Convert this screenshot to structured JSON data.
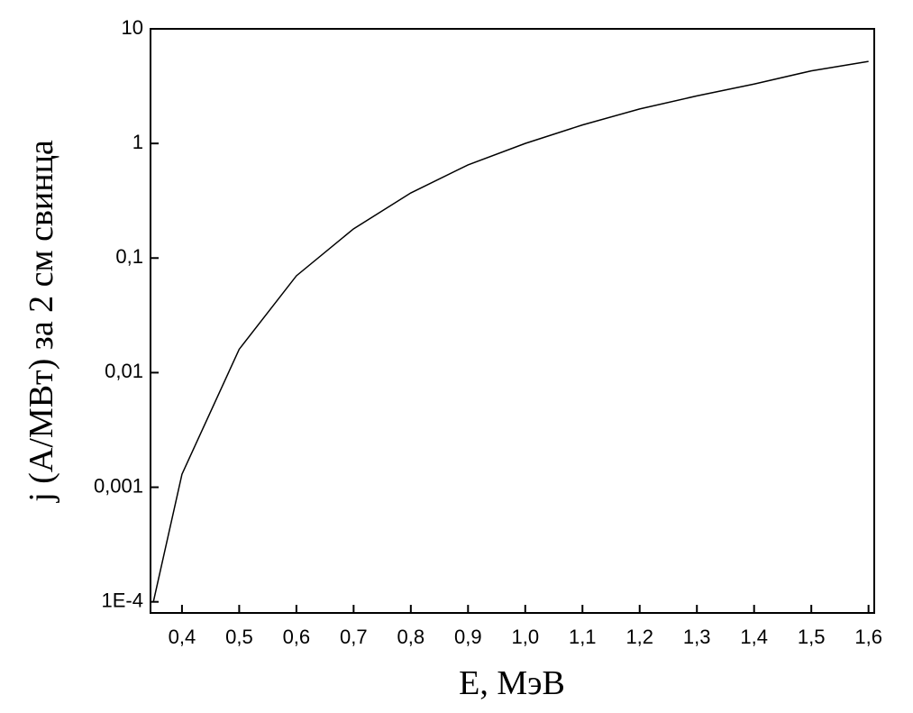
{
  "chart_data": {
    "type": "line",
    "xlabel": "E, МэВ",
    "ylabel": "j (A/МВт) за 2 см свинца",
    "x": [
      0.35,
      0.4,
      0.5,
      0.6,
      0.7,
      0.8,
      0.9,
      1.0,
      1.1,
      1.2,
      1.3,
      1.4,
      1.5,
      1.6
    ],
    "series": [
      {
        "color": "#000000",
        "values": [
          0.0001,
          0.0013,
          0.016,
          0.07,
          0.18,
          0.37,
          0.65,
          1.0,
          1.45,
          2.0,
          2.6,
          3.3,
          4.3,
          5.2
        ]
      }
    ],
    "xlim": [
      0.345,
      1.61
    ],
    "ylim": [
      8e-05,
      10
    ],
    "ylog": true,
    "xticks": [
      {
        "value": 0.4,
        "label": "0,4"
      },
      {
        "value": 0.5,
        "label": "0,5"
      },
      {
        "value": 0.6,
        "label": "0,6"
      },
      {
        "value": 0.7,
        "label": "0,7"
      },
      {
        "value": 0.8,
        "label": "0,8"
      },
      {
        "value": 0.9,
        "label": "0,9"
      },
      {
        "value": 1.0,
        "label": "1,0"
      },
      {
        "value": 1.1,
        "label": "1,1"
      },
      {
        "value": 1.2,
        "label": "1,2"
      },
      {
        "value": 1.3,
        "label": "1,3"
      },
      {
        "value": 1.4,
        "label": "1,4"
      },
      {
        "value": 1.5,
        "label": "1,5"
      },
      {
        "value": 1.6,
        "label": "1,6"
      }
    ],
    "yticks": [
      {
        "value": 0.0001,
        "label": "1E-4"
      },
      {
        "value": 0.001,
        "label": "0,001"
      },
      {
        "value": 0.01,
        "label": "0,01"
      },
      {
        "value": 0.1,
        "label": "0,1"
      },
      1,
      10
    ],
    "grid": false
  }
}
